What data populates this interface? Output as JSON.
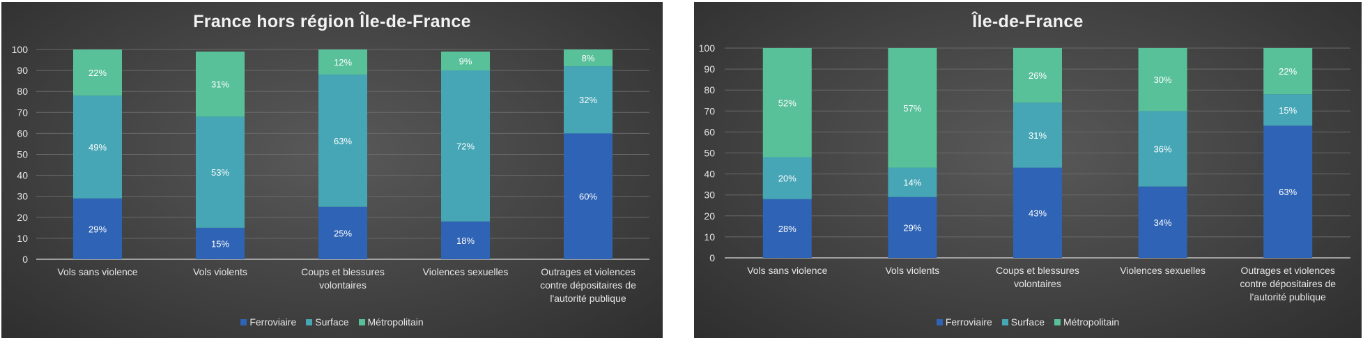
{
  "chart_data": [
    {
      "type": "bar",
      "stacked": true,
      "title": "France hors région Île-de-France",
      "categories": [
        [
          "Vols sans violence"
        ],
        [
          "Vols violents"
        ],
        [
          "Coups et blessures",
          "volontaires"
        ],
        [
          "Violences sexuelles"
        ],
        [
          "Outrages et violences",
          "contre dépositaires de",
          "l'autorité publique"
        ]
      ],
      "series": [
        {
          "name": "Ferroviaire",
          "color": "#2e63b5",
          "values": [
            29,
            15,
            25,
            18,
            60
          ]
        },
        {
          "name": "Surface",
          "color": "#46a6b6",
          "values": [
            49,
            53,
            63,
            72,
            32
          ]
        },
        {
          "name": "Métropolitain",
          "color": "#58c19a",
          "values": [
            22,
            31,
            12,
            9,
            8
          ]
        }
      ],
      "data_labels": [
        [
          "29%",
          "15%",
          "25%",
          "18%",
          "60%"
        ],
        [
          "49%",
          "53%",
          "63%",
          "72%",
          "32%"
        ],
        [
          "22%",
          "31%",
          "12%",
          "9%",
          "8%"
        ]
      ],
      "yticks": [
        "0",
        "10",
        "20",
        "30",
        "40",
        "50",
        "60",
        "70",
        "80",
        "90",
        "100"
      ],
      "ylim": [
        0,
        100
      ],
      "grid": true,
      "legend": "bottom"
    },
    {
      "type": "bar",
      "stacked": true,
      "title": "Île-de-France",
      "categories": [
        [
          "Vols sans violence"
        ],
        [
          "Vols violents"
        ],
        [
          "Coups et blessures",
          "volontaires"
        ],
        [
          "Violences sexuelles"
        ],
        [
          "Outrages et violences",
          "contre dépositaires de",
          "l'autorité publique"
        ]
      ],
      "series": [
        {
          "name": "Ferroviaire",
          "color": "#2e63b5",
          "values": [
            28,
            29,
            43,
            34,
            63
          ]
        },
        {
          "name": "Surface",
          "color": "#46a6b6",
          "values": [
            20,
            14,
            31,
            36,
            15
          ]
        },
        {
          "name": "Métropolitain",
          "color": "#58c19a",
          "values": [
            52,
            57,
            26,
            30,
            22
          ]
        }
      ],
      "data_labels": [
        [
          "28%",
          "29%",
          "43%",
          "34%",
          "63%"
        ],
        [
          "20%",
          "14%",
          "31%",
          "36%",
          "15%"
        ],
        [
          "52%",
          "57%",
          "26%",
          "30%",
          "22%"
        ]
      ],
      "yticks": [
        "0",
        "10",
        "20",
        "30",
        "40",
        "50",
        "60",
        "70",
        "80",
        "90",
        "100"
      ],
      "ylim": [
        0,
        100
      ],
      "grid": true,
      "legend": "bottom"
    }
  ]
}
